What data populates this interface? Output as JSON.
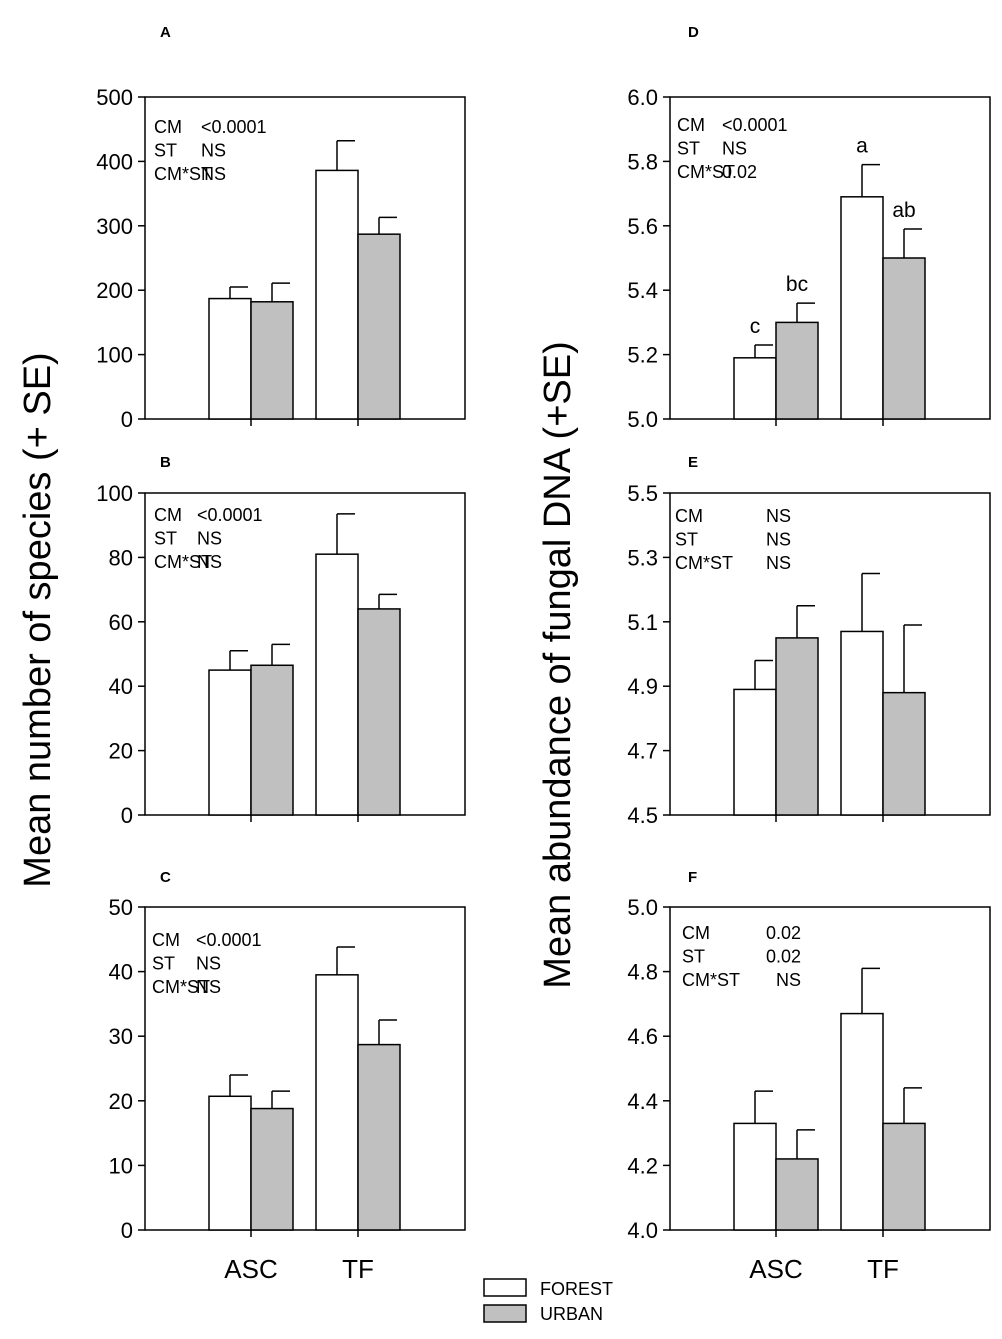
{
  "y_label_left": "Mean number of species (+ SE)",
  "y_label_right": "Mean abundance of fungal DNA (+SE)",
  "legend": [
    {
      "label": "FOREST",
      "color": "#ffffff"
    },
    {
      "label": "URBAN",
      "color": "#c0c0c0"
    }
  ],
  "colors": {
    "forest": "#ffffff",
    "urban": "#c0c0c0",
    "axis": "#000000"
  },
  "chart_data": [
    {
      "panel": "A",
      "type": "bar",
      "categories": [
        "ASC",
        "TF"
      ],
      "ylim": [
        0,
        500
      ],
      "yticks": [
        "0",
        "100",
        "200",
        "300",
        "400",
        "500"
      ],
      "series": [
        {
          "name": "FOREST",
          "values": [
            187,
            386
          ],
          "se": [
            18,
            46
          ]
        },
        {
          "name": "URBAN",
          "values": [
            182,
            287
          ],
          "se": [
            29,
            26
          ]
        }
      ],
      "stats": [
        [
          "CM",
          "<0.0001"
        ],
        [
          "ST",
          "NS"
        ],
        [
          "CM*ST",
          "NS"
        ]
      ],
      "letters": [],
      "show_categories": false
    },
    {
      "panel": "B",
      "type": "bar",
      "categories": [
        "ASC",
        "TF"
      ],
      "ylim": [
        0,
        100
      ],
      "yticks": [
        "0",
        "20",
        "40",
        "60",
        "80",
        "100"
      ],
      "series": [
        {
          "name": "FOREST",
          "values": [
            45,
            81
          ],
          "se": [
            6,
            12.5
          ]
        },
        {
          "name": "URBAN",
          "values": [
            46.5,
            64
          ],
          "se": [
            6.5,
            4.5
          ]
        }
      ],
      "stats": [
        [
          "CM",
          "<0.0001"
        ],
        [
          "ST",
          "NS"
        ],
        [
          "CM*ST",
          "NS"
        ]
      ],
      "letters": [],
      "show_categories": false
    },
    {
      "panel": "C",
      "type": "bar",
      "categories": [
        "ASC",
        "TF"
      ],
      "ylim": [
        0,
        50
      ],
      "yticks": [
        "0",
        "10",
        "20",
        "30",
        "40",
        "50"
      ],
      "series": [
        {
          "name": "FOREST",
          "values": [
            20.7,
            39.5
          ],
          "se": [
            3.3,
            4.3
          ]
        },
        {
          "name": "URBAN",
          "values": [
            18.8,
            28.7
          ],
          "se": [
            2.7,
            3.8
          ]
        }
      ],
      "stats": [
        [
          "CM",
          "<0.0001"
        ],
        [
          "ST",
          "NS"
        ],
        [
          "CM*ST",
          "NS"
        ]
      ],
      "letters": [],
      "show_categories": true
    },
    {
      "panel": "D",
      "type": "bar",
      "categories": [
        "ASC",
        "TF"
      ],
      "ylim": [
        5.0,
        6.0
      ],
      "yticks": [
        "5.0",
        "5.2",
        "5.4",
        "5.6",
        "5.8",
        "6.0"
      ],
      "series": [
        {
          "name": "FOREST",
          "values": [
            5.19,
            5.69
          ],
          "se": [
            0.04,
            0.1
          ]
        },
        {
          "name": "URBAN",
          "values": [
            5.3,
            5.5
          ],
          "se": [
            0.06,
            0.09
          ]
        }
      ],
      "stats": [
        [
          "CM",
          "<0.0001"
        ],
        [
          "ST",
          "NS"
        ],
        [
          "CM*ST",
          "0.02"
        ]
      ],
      "letters": [
        [
          "c",
          "a"
        ],
        [
          "bc",
          "ab"
        ]
      ],
      "show_categories": false
    },
    {
      "panel": "E",
      "type": "bar",
      "categories": [
        "ASC",
        "TF"
      ],
      "ylim": [
        4.5,
        5.5
      ],
      "yticks": [
        "4.5",
        "4.7",
        "4.9",
        "5.1",
        "5.3",
        "5.5"
      ],
      "series": [
        {
          "name": "FOREST",
          "values": [
            4.89,
            5.07
          ],
          "se": [
            0.09,
            0.18
          ]
        },
        {
          "name": "URBAN",
          "values": [
            5.05,
            4.88
          ],
          "se": [
            0.1,
            0.21
          ]
        }
      ],
      "stats": [
        [
          "CM",
          "NS"
        ],
        [
          "ST",
          "NS"
        ],
        [
          "CM*ST",
          "NS"
        ]
      ],
      "letters": [],
      "show_categories": false
    },
    {
      "panel": "F",
      "type": "bar",
      "categories": [
        "ASC",
        "TF"
      ],
      "ylim": [
        4.0,
        5.0
      ],
      "yticks": [
        "4.0",
        "4.2",
        "4.4",
        "4.6",
        "4.8",
        "5.0"
      ],
      "series": [
        {
          "name": "FOREST",
          "values": [
            4.33,
            4.67
          ],
          "se": [
            0.1,
            0.14
          ]
        },
        {
          "name": "URBAN",
          "values": [
            4.22,
            4.33
          ],
          "se": [
            0.09,
            0.11
          ]
        }
      ],
      "stats": [
        [
          "CM",
          "0.02"
        ],
        [
          "ST",
          "0.02"
        ],
        [
          "CM*ST",
          "NS"
        ]
      ],
      "letters": [],
      "show_categories": true
    }
  ]
}
